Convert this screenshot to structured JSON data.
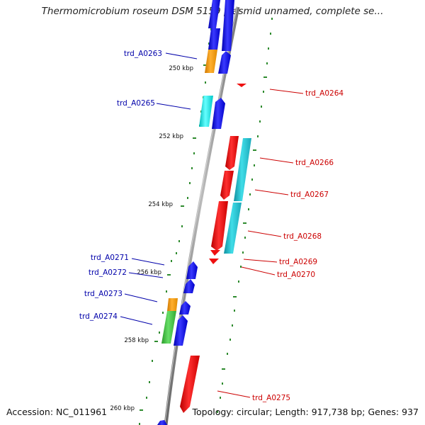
{
  "title": "Thermomicrobium roseum DSM 5159 plasmid unnamed, complete se...",
  "footer": {
    "accession": "Accession: NC_011961",
    "stats": "Topology: circular; Length: 917,738 bp; Genes: 937"
  },
  "colors": {
    "forward_label": "#0000aa",
    "reverse_label": "#cc0000",
    "backbone": "#888888",
    "dots": "#2e8b2e",
    "blue": "#1a1aee",
    "orange": "#f39a16",
    "cyan": "#22dddd",
    "red": "#ee1010",
    "teal": "#22bbcc",
    "green": "#44bb44"
  },
  "ticks": [
    {
      "label": "250 kbp"
    },
    {
      "label": "252 kbp"
    },
    {
      "label": "254 kbp"
    },
    {
      "label": "256 kbp"
    },
    {
      "label": "258 kbp"
    },
    {
      "label": "260 kbp"
    }
  ],
  "labels": [
    {
      "text": "trd_A0263",
      "strand": "forward"
    },
    {
      "text": "trd_A0264",
      "strand": "reverse"
    },
    {
      "text": "trd_A0265",
      "strand": "forward"
    },
    {
      "text": "trd_A0266",
      "strand": "reverse"
    },
    {
      "text": "trd_A0267",
      "strand": "reverse"
    },
    {
      "text": "trd_A0268",
      "strand": "reverse"
    },
    {
      "text": "trd_A0269",
      "strand": "reverse"
    },
    {
      "text": "trd_A0270",
      "strand": "reverse"
    },
    {
      "text": "trd_A0271",
      "strand": "forward"
    },
    {
      "text": "trd_A0272",
      "strand": "forward"
    },
    {
      "text": "trd_A0273",
      "strand": "forward"
    },
    {
      "text": "trd_A0274",
      "strand": "forward"
    },
    {
      "text": "trd_A0275",
      "strand": "reverse"
    }
  ]
}
